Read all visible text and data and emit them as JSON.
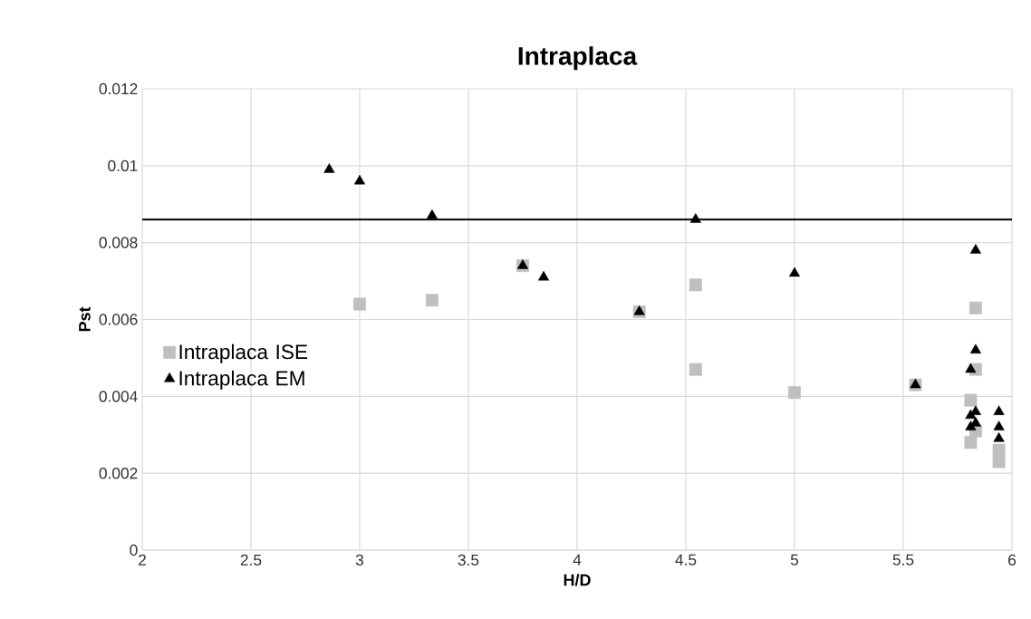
{
  "chart_data": {
    "type": "scatter",
    "title": "Intraplaca",
    "xlabel": "H/D",
    "ylabel": "Pst",
    "xlim": [
      2,
      6
    ],
    "ylim": [
      0,
      0.012
    ],
    "xticks": [
      2,
      2.5,
      3,
      3.5,
      4,
      4.5,
      5,
      5.5,
      6
    ],
    "yticks": [
      0,
      0.002,
      0.004,
      0.006,
      0.008,
      0.01,
      0.012
    ],
    "grid": true,
    "legend": "left",
    "ref_lines": [
      {
        "axis": "y",
        "value": 0.0086,
        "color": "#000000",
        "line_style": "solid"
      }
    ],
    "series": [
      {
        "name": "Intraplaca ISE",
        "color": "#bfbfbf",
        "marker": "square",
        "x": [
          3.0,
          3.333,
          3.75,
          4.286,
          4.545,
          4.545,
          5.0,
          5.556,
          5.833,
          5.833,
          5.81,
          5.81,
          5.833,
          5.94,
          5.94
        ],
        "values": [
          0.0064,
          0.0065,
          0.0074,
          0.0062,
          0.0069,
          0.0047,
          0.0041,
          0.0043,
          0.0063,
          0.0047,
          0.0039,
          0.0028,
          0.0031,
          0.0026,
          0.0023
        ]
      },
      {
        "name": "Intraplaca EM",
        "color": "#000000",
        "marker": "triangle",
        "x": [
          2.86,
          3.0,
          3.333,
          3.75,
          3.846,
          4.286,
          4.545,
          5.0,
          5.556,
          5.833,
          5.833,
          5.81,
          5.81,
          5.833,
          5.81,
          5.833,
          5.94,
          5.94,
          5.94
        ],
        "values": [
          0.0099,
          0.0096,
          0.0087,
          0.0074,
          0.0071,
          0.0062,
          0.0086,
          0.0072,
          0.0043,
          0.0078,
          0.0052,
          0.0047,
          0.0035,
          0.0036,
          0.0032,
          0.0033,
          0.0036,
          0.0032,
          0.0029
        ]
      }
    ]
  }
}
